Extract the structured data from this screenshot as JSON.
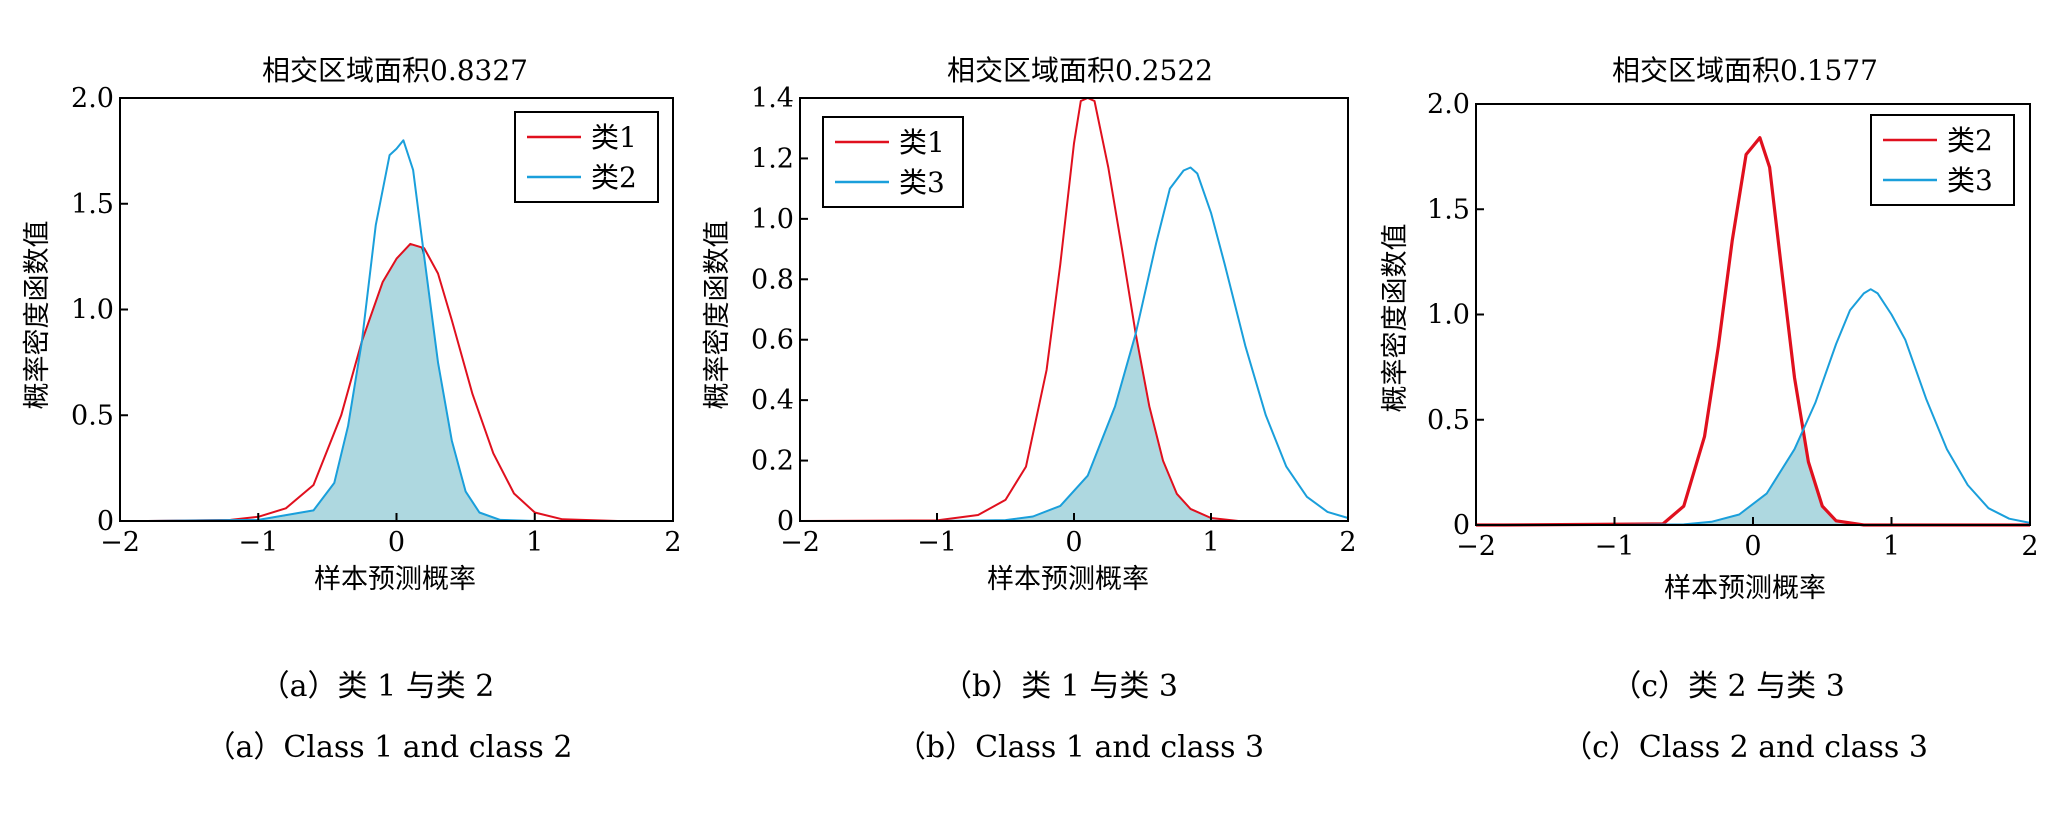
{
  "chart_data": [
    {
      "type": "line",
      "title": "相交区域面积0.8327",
      "xlabel": "样本预测概率",
      "ylabel": "概率密度函数值",
      "xlim": [
        -2,
        2
      ],
      "ylim": [
        0,
        2.0
      ],
      "xticks": [
        -2,
        -1,
        0,
        1,
        2
      ],
      "xtick_labels": [
        "−2",
        "−1",
        "0",
        "1",
        "2"
      ],
      "yticks": [
        0,
        0.5,
        1.0,
        1.5,
        2.0
      ],
      "ytick_labels": [
        "0",
        "0.5",
        "1.0",
        "1.5",
        "2.0"
      ],
      "legend_position": "top-right",
      "overlap_fill": true,
      "series": [
        {
          "name": "类1",
          "color": "#e0101e",
          "x": [
            -2,
            -1.8,
            -1.2,
            -1.0,
            -0.8,
            -0.6,
            -0.4,
            -0.25,
            -0.1,
            0.0,
            0.1,
            0.2,
            0.3,
            0.4,
            0.55,
            0.7,
            0.85,
            1.0,
            1.2,
            1.6,
            2
          ],
          "y": [
            0,
            0,
            0.005,
            0.02,
            0.06,
            0.17,
            0.5,
            0.85,
            1.13,
            1.24,
            1.31,
            1.29,
            1.17,
            0.95,
            0.6,
            0.32,
            0.13,
            0.04,
            0.008,
            0,
            0
          ]
        },
        {
          "name": "类2",
          "color": "#1a9fdb",
          "x": [
            -2,
            -1.8,
            -1.0,
            -0.6,
            -0.45,
            -0.35,
            -0.25,
            -0.15,
            -0.05,
            0.0,
            0.05,
            0.12,
            0.2,
            0.3,
            0.4,
            0.5,
            0.6,
            0.75,
            1.0,
            2
          ],
          "y": [
            0,
            0,
            0.005,
            0.05,
            0.18,
            0.45,
            0.85,
            1.4,
            1.73,
            1.76,
            1.8,
            1.66,
            1.25,
            0.75,
            0.38,
            0.14,
            0.04,
            0.005,
            0,
            0
          ]
        }
      ]
    },
    {
      "type": "line",
      "title": "相交区域面积0.2522",
      "xlabel": "样本预测概率",
      "ylabel": "概率密度函数值",
      "xlim": [
        -2,
        2
      ],
      "ylim": [
        0,
        1.4
      ],
      "xticks": [
        -2,
        -1,
        0,
        1,
        2
      ],
      "xtick_labels": [
        "−2",
        "−1",
        "0",
        "1",
        "2"
      ],
      "yticks": [
        0,
        0.2,
        0.4,
        0.6,
        0.8,
        1.0,
        1.2,
        1.4
      ],
      "ytick_labels": [
        "0",
        "0.2",
        "0.4",
        "0.6",
        "0.8",
        "1.0",
        "1.2",
        "1.4"
      ],
      "legend_position": "top-left",
      "overlap_fill": true,
      "series": [
        {
          "name": "类1",
          "color": "#e0101e",
          "x": [
            -2,
            -1.0,
            -0.7,
            -0.5,
            -0.35,
            -0.2,
            -0.1,
            0.0,
            0.05,
            0.1,
            0.15,
            0.25,
            0.35,
            0.45,
            0.55,
            0.65,
            0.75,
            0.85,
            1.0,
            1.2,
            2
          ],
          "y": [
            0,
            0.002,
            0.02,
            0.07,
            0.18,
            0.5,
            0.85,
            1.25,
            1.39,
            1.4,
            1.39,
            1.17,
            0.9,
            0.62,
            0.38,
            0.2,
            0.09,
            0.04,
            0.01,
            0,
            0
          ]
        },
        {
          "name": "类3",
          "color": "#1a9fdb",
          "x": [
            -2,
            -1.0,
            -0.5,
            -0.3,
            -0.1,
            0.1,
            0.3,
            0.45,
            0.6,
            0.7,
            0.8,
            0.85,
            0.9,
            1.0,
            1.1,
            1.25,
            1.4,
            1.55,
            1.7,
            1.85,
            2
          ],
          "y": [
            0,
            0,
            0.003,
            0.015,
            0.05,
            0.15,
            0.38,
            0.62,
            0.92,
            1.1,
            1.16,
            1.17,
            1.15,
            1.02,
            0.85,
            0.58,
            0.35,
            0.18,
            0.08,
            0.03,
            0.01
          ]
        }
      ]
    },
    {
      "type": "line",
      "title": "相交区域面积0.1577",
      "xlabel": "样本预测概率",
      "ylabel": "概率密度函数值",
      "xlim": [
        -2,
        2
      ],
      "ylim": [
        0,
        2.0
      ],
      "xticks": [
        -2,
        -1,
        0,
        1,
        2
      ],
      "xtick_labels": [
        "−2",
        "−1",
        "0",
        "1",
        "2"
      ],
      "yticks": [
        0,
        0.5,
        1.0,
        1.5,
        2.0
      ],
      "ytick_labels": [
        "0",
        "0.5",
        "1.0",
        "1.5",
        "2.0"
      ],
      "legend_position": "top-right",
      "overlap_fill": true,
      "series": [
        {
          "name": "类2",
          "color": "#e0101e",
          "x": [
            -2,
            -1.8,
            -0.65,
            -0.5,
            -0.35,
            -0.25,
            -0.15,
            -0.05,
            0.0,
            0.05,
            0.12,
            0.2,
            0.3,
            0.4,
            0.5,
            0.6,
            0.8,
            2
          ],
          "y": [
            0,
            0,
            0.005,
            0.09,
            0.42,
            0.85,
            1.35,
            1.76,
            1.8,
            1.84,
            1.7,
            1.25,
            0.7,
            0.3,
            0.09,
            0.02,
            0,
            0
          ]
        },
        {
          "name": "类3",
          "color": "#1a9fdb",
          "x": [
            -2,
            -1.0,
            -0.5,
            -0.3,
            -0.1,
            0.1,
            0.3,
            0.45,
            0.6,
            0.7,
            0.8,
            0.85,
            0.9,
            1.0,
            1.1,
            1.25,
            1.4,
            1.55,
            1.7,
            1.85,
            2
          ],
          "y": [
            0,
            0,
            0.003,
            0.015,
            0.05,
            0.15,
            0.36,
            0.58,
            0.86,
            1.02,
            1.1,
            1.12,
            1.1,
            1.0,
            0.88,
            0.6,
            0.36,
            0.19,
            0.08,
            0.03,
            0.01
          ]
        }
      ]
    }
  ],
  "captions": [
    {
      "zh": "（a）类 1 与类 2",
      "en": "（a）Class 1 and class 2"
    },
    {
      "zh": "（b）类 1 与类 3",
      "en": "（b）Class 1 and class 3"
    },
    {
      "zh": "（c）类 2 与类 3",
      "en": "（c）Class 2 and class 3"
    }
  ],
  "colors": {
    "overlap_fill": "#aed8e0",
    "axis": "#000000"
  }
}
